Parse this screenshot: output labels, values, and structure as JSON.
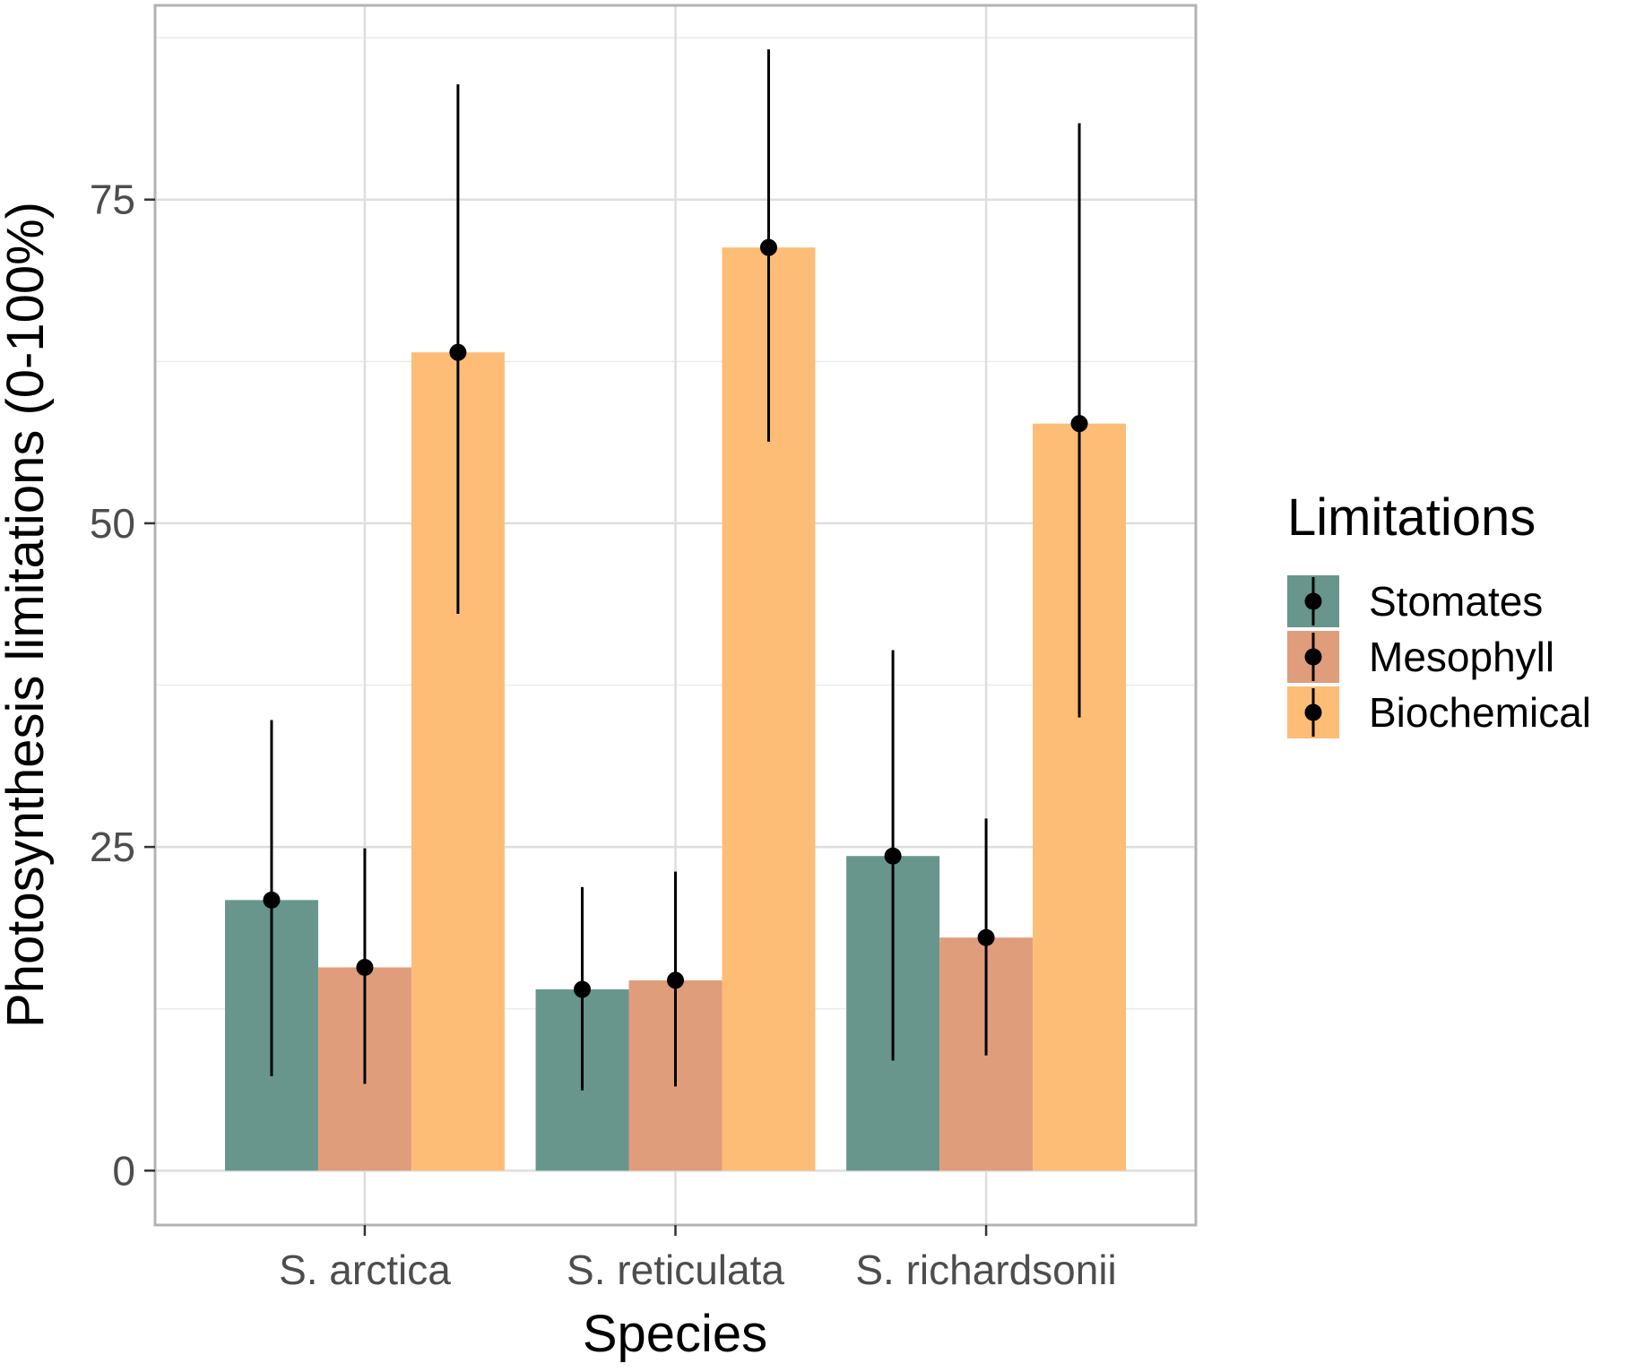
{
  "chart_data": {
    "type": "bar",
    "title": "",
    "xlabel": "Species",
    "ylabel": "Photosynthesis limitations (0-100%)",
    "categories": [
      "S. arctica",
      "S. reticulata",
      "S. richardsonii"
    ],
    "series": [
      {
        "name": "Stomates",
        "color": "#68968d",
        "values": [
          20.9,
          14.0,
          24.3
        ],
        "err_low": [
          7.3,
          6.2,
          8.5
        ],
        "err_high": [
          34.8,
          21.9,
          40.2
        ]
      },
      {
        "name": "Mesophyll",
        "color": "#e09d7b",
        "values": [
          15.7,
          14.7,
          18.0
        ],
        "err_low": [
          6.7,
          6.5,
          8.9
        ],
        "err_high": [
          24.9,
          23.1,
          27.2
        ]
      },
      {
        "name": "Biochemical",
        "color": "#fdbd76",
        "values": [
          63.2,
          71.3,
          57.7
        ],
        "err_low": [
          43.0,
          56.3,
          35.0
        ],
        "err_high": [
          83.9,
          86.6,
          80.9
        ]
      }
    ],
    "ylim": [
      -4.2,
      90
    ],
    "yticks": [
      0,
      25,
      50,
      75
    ],
    "grid": true,
    "legend": {
      "title": "Limitations",
      "placement": "right"
    }
  }
}
